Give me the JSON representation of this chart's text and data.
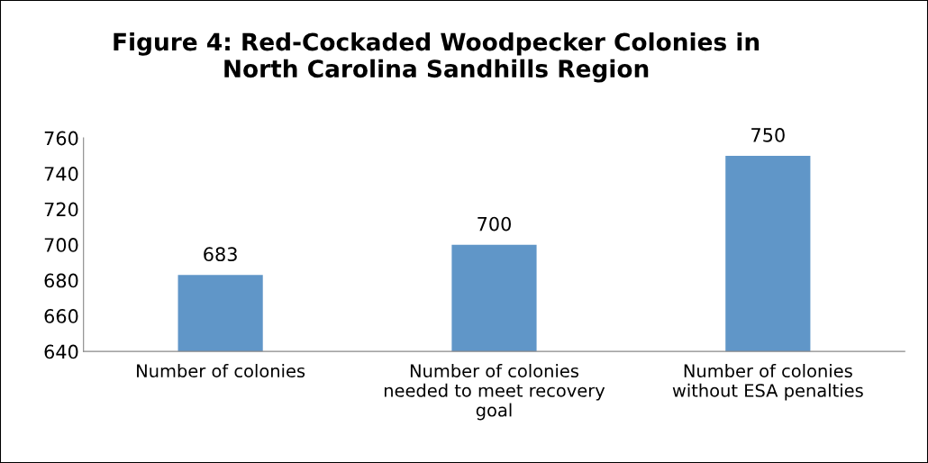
{
  "chart_data": {
    "type": "bar",
    "title": "Figure 4: Red-Cockaded Woodpecker Colonies in\nNorth Carolina Sandhills Region",
    "categories": [
      "Number of colonies",
      "Number of colonies\nneeded to meet recovery\ngoal",
      "Number of colonies\nwithout ESA penalties"
    ],
    "values": [
      683,
      700,
      750
    ],
    "color": "#6096c8",
    "ylim": [
      640,
      760
    ],
    "yticks": [
      640,
      660,
      680,
      700,
      720,
      740,
      760
    ],
    "grid": false,
    "data_labels": true
  }
}
